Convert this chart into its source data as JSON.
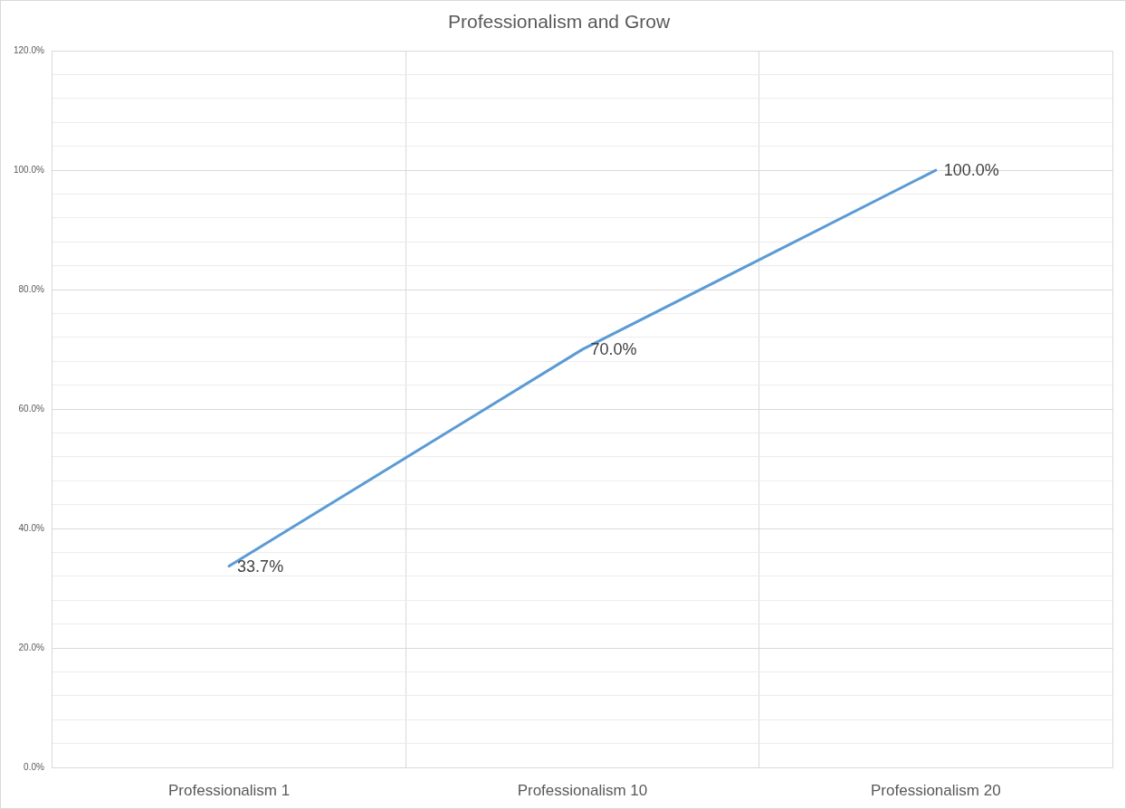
{
  "chart_data": {
    "type": "line",
    "title": "Professionalism and Grow",
    "categories": [
      "Professionalism 1",
      "Professionalism 10",
      "Professionalism 20"
    ],
    "series": [
      {
        "color": "#5b9bd5",
        "values": [
          33.7,
          70.0,
          100.0
        ],
        "value_labels": [
          "33.7%",
          "70.0%",
          "100.0%"
        ]
      }
    ],
    "ylim": [
      0,
      120
    ],
    "yticks": [
      {
        "value": 0,
        "label": "0.0%"
      },
      {
        "value": 4,
        "label": null
      },
      {
        "value": 8,
        "label": null
      },
      {
        "value": 12,
        "label": null
      },
      {
        "value": 16,
        "label": null
      },
      {
        "value": 20,
        "label": "20.0%"
      },
      {
        "value": 24,
        "label": null
      },
      {
        "value": 28,
        "label": null
      },
      {
        "value": 32,
        "label": null
      },
      {
        "value": 36,
        "label": null
      },
      {
        "value": 40,
        "label": "40.0%"
      },
      {
        "value": 44,
        "label": null
      },
      {
        "value": 48,
        "label": null
      },
      {
        "value": 52,
        "label": null
      },
      {
        "value": 56,
        "label": null
      },
      {
        "value": 60,
        "label": "60.0%"
      },
      {
        "value": 64,
        "label": null
      },
      {
        "value": 68,
        "label": null
      },
      {
        "value": 72,
        "label": null
      },
      {
        "value": 76,
        "label": null
      },
      {
        "value": 80,
        "label": "80.0%"
      },
      {
        "value": 84,
        "label": null
      },
      {
        "value": 88,
        "label": null
      },
      {
        "value": 92,
        "label": null
      },
      {
        "value": 96,
        "label": null
      },
      {
        "value": 100,
        "label": "100.0%"
      },
      {
        "value": 104,
        "label": null
      },
      {
        "value": 108,
        "label": null
      },
      {
        "value": 112,
        "label": null
      },
      {
        "value": 116,
        "label": null
      },
      {
        "value": 120,
        "label": "120.0%"
      }
    ],
    "grid": true,
    "legend": false,
    "marker": "none"
  }
}
